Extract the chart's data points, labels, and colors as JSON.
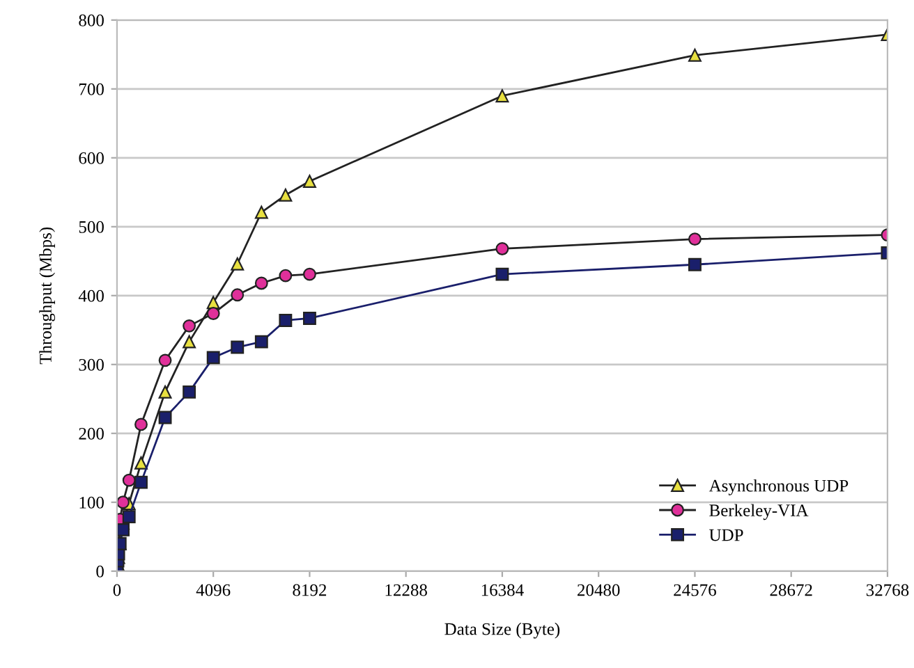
{
  "chart_data": {
    "type": "line",
    "xlabel": "Data Size (Byte)",
    "ylabel": "Throughput (Mbps)",
    "x": [
      4,
      32,
      64,
      128,
      256,
      512,
      1024,
      2048,
      3072,
      4096,
      5120,
      6144,
      7168,
      8192,
      16384,
      24576,
      32768
    ],
    "series": [
      {
        "name": "Asynchronous UDP",
        "color": "#e8e040",
        "marker": "triangle",
        "values": [
          5,
          10,
          20,
          40,
          70,
          98,
          157,
          260,
          333,
          390,
          446,
          521,
          546,
          566,
          690,
          749,
          779
        ]
      },
      {
        "name": "Berkeley-VIA",
        "color": "#e0309a",
        "marker": "circle",
        "values": [
          8,
          20,
          40,
          75,
          100,
          132,
          213,
          306,
          356,
          374,
          401,
          418,
          429,
          431,
          468,
          482,
          488
        ]
      },
      {
        "name": "UDP",
        "color": "#1a1f6b",
        "marker": "square",
        "values": [
          8,
          15,
          25,
          40,
          60,
          79,
          129,
          223,
          260,
          310,
          325,
          333,
          364,
          367,
          431,
          445,
          462
        ]
      }
    ],
    "xlim": [
      0,
      32768
    ],
    "xticks": [
      0,
      4096,
      8192,
      12288,
      16384,
      20480,
      24576,
      28672,
      32768
    ],
    "ylim": [
      0,
      800
    ],
    "yticks": [
      0,
      100,
      200,
      300,
      400,
      500,
      600,
      700,
      800
    ],
    "grid": "y",
    "legend": "bottom right"
  }
}
